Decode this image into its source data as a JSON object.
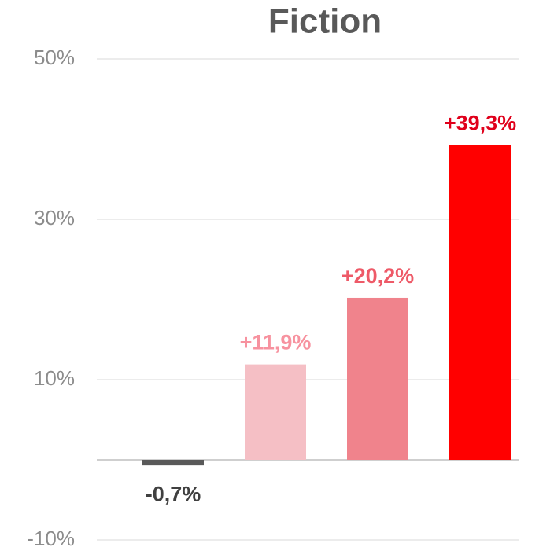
{
  "chart_data": {
    "type": "bar",
    "title": "Fiction",
    "categories": [
      null,
      null,
      null,
      null
    ],
    "values": [
      -0.7,
      11.9,
      20.2,
      39.3
    ],
    "value_labels": [
      "-0,7%",
      "+11,9%",
      "+20,2%",
      "+39,3%"
    ],
    "colors": [
      "#595959",
      "#f5bfc5",
      "#f0838c",
      "#ff0000"
    ],
    "label_colors": [
      "#404040",
      "#f7929f",
      "#ee5a68",
      "#e0001b"
    ],
    "ylim": [
      -10,
      50
    ],
    "yticks": [
      {
        "value": -10,
        "label": "-10%"
      },
      {
        "value": 10,
        "label": "10%"
      },
      {
        "value": 30,
        "label": "30%"
      },
      {
        "value": 50,
        "label": "50%"
      }
    ],
    "grid": true
  }
}
